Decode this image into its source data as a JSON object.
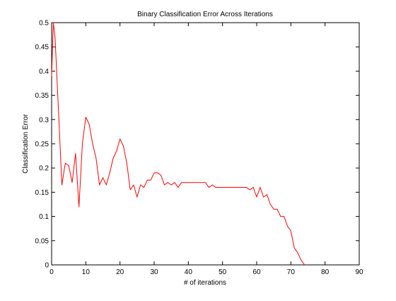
{
  "chart_data": {
    "type": "line",
    "title": "Binary Classification Error Across Iterations",
    "xlabel": "# of iterations",
    "ylabel": "Classification Error",
    "xlim": [
      0,
      90
    ],
    "ylim": [
      0,
      0.5
    ],
    "xticks": [
      0,
      10,
      20,
      30,
      40,
      50,
      60,
      70,
      80,
      90
    ],
    "yticks": [
      0,
      0.05,
      0.1,
      0.15,
      0.2,
      0.25,
      0.3,
      0.35,
      0.4,
      0.45,
      0.5
    ],
    "xtick_labels": [
      "0",
      "10",
      "20",
      "30",
      "40",
      "50",
      "60",
      "70",
      "80",
      "90"
    ],
    "ytick_labels": [
      "0",
      "0.05",
      "0.1",
      "0.15",
      "0.2",
      "0.25",
      "0.3",
      "0.35",
      "0.4",
      "0.45",
      "0.5"
    ],
    "grid": false,
    "series": [
      {
        "color": "#ff0000",
        "x": [
          0,
          0.5,
          1,
          2,
          3,
          4,
          5,
          6,
          7,
          8,
          9,
          10,
          11,
          12,
          13,
          14,
          15,
          16,
          17,
          18,
          19,
          20,
          21,
          22,
          23,
          24,
          25,
          26,
          27,
          28,
          29,
          30,
          31,
          32,
          33,
          34,
          35,
          36,
          37,
          38,
          39,
          40,
          41,
          42,
          43,
          44,
          45,
          46,
          47,
          48,
          49,
          50,
          51,
          52,
          53,
          54,
          55,
          56,
          57,
          58,
          59,
          60,
          61,
          62,
          63,
          64,
          65,
          66,
          67,
          68,
          69,
          70,
          71,
          72,
          73,
          74
        ],
        "y": [
          0.39,
          0.5,
          0.47,
          0.32,
          0.165,
          0.21,
          0.205,
          0.17,
          0.23,
          0.12,
          0.25,
          0.305,
          0.29,
          0.25,
          0.22,
          0.165,
          0.18,
          0.165,
          0.19,
          0.22,
          0.235,
          0.26,
          0.245,
          0.21,
          0.155,
          0.165,
          0.14,
          0.165,
          0.16,
          0.175,
          0.175,
          0.19,
          0.19,
          0.185,
          0.165,
          0.17,
          0.165,
          0.17,
          0.16,
          0.17,
          0.17,
          0.17,
          0.17,
          0.17,
          0.17,
          0.17,
          0.17,
          0.16,
          0.165,
          0.16,
          0.16,
          0.16,
          0.16,
          0.16,
          0.16,
          0.16,
          0.16,
          0.16,
          0.16,
          0.155,
          0.16,
          0.14,
          0.16,
          0.14,
          0.145,
          0.125,
          0.115,
          0.115,
          0.1,
          0.1,
          0.08,
          0.07,
          0.035,
          0.025,
          0.01,
          0.0
        ]
      }
    ]
  }
}
